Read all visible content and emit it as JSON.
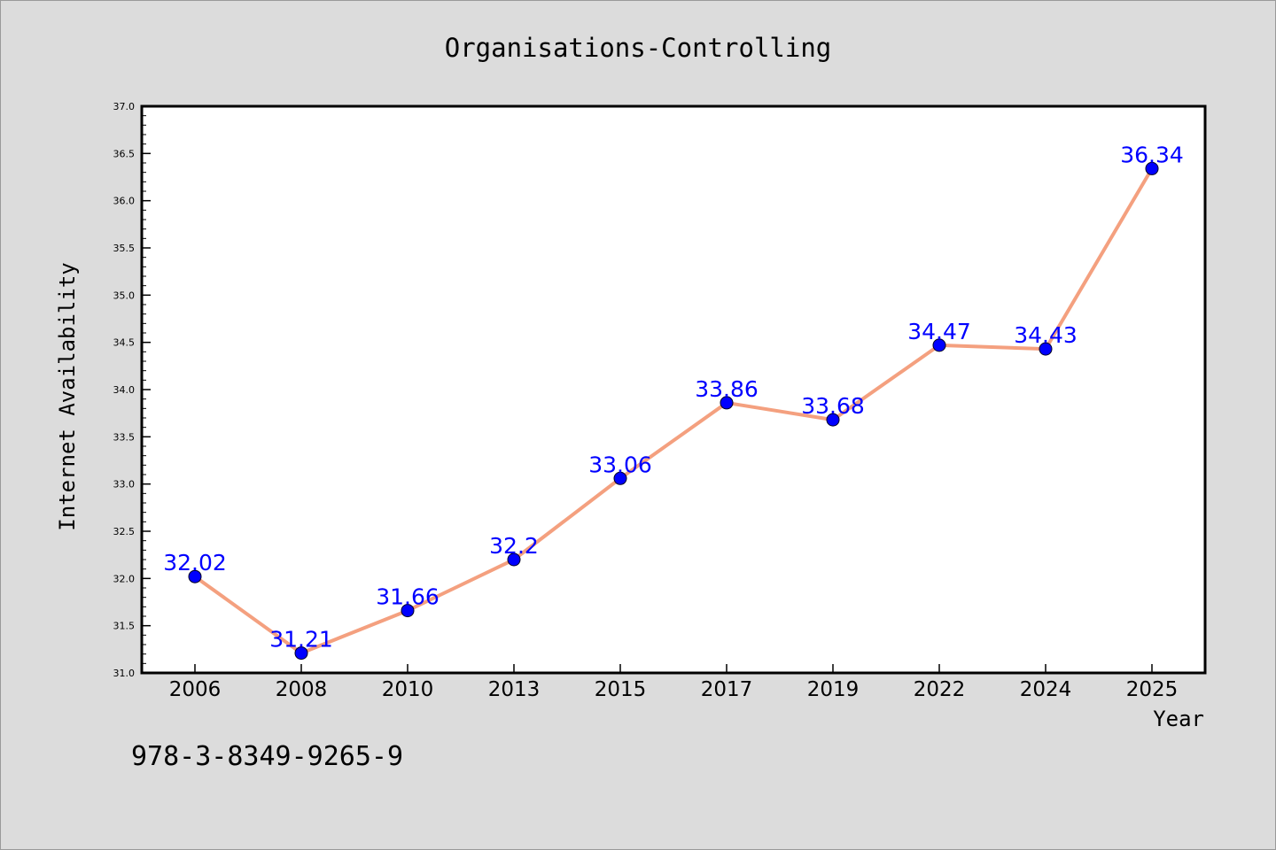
{
  "footer_text": "978-3-8349-9265-9",
  "colors": {
    "background": "#dcdcdc",
    "plot_bg": "#ffffff",
    "line": "#f4a07f",
    "marker": "#0000ff",
    "data_label": "#0000ff"
  },
  "chart_data": {
    "type": "line",
    "title": "Organisations-Controlling",
    "xlabel": "Year",
    "ylabel": "Internet Availability",
    "categories": [
      "2006",
      "2008",
      "2010",
      "2013",
      "2015",
      "2017",
      "2019",
      "2022",
      "2024",
      "2025"
    ],
    "values": [
      32.02,
      31.21,
      31.66,
      32.2,
      33.06,
      33.86,
      33.68,
      34.47,
      34.43,
      36.34
    ],
    "data_labels": [
      "32.02",
      "31.21",
      "31.66",
      "32.2",
      "33.06",
      "33.86",
      "33.68",
      "34.47",
      "34.43",
      "36.34"
    ],
    "ylim": [
      31.0,
      37.0
    ],
    "yticks": [
      "31.0",
      "31.5",
      "32.0",
      "32.5",
      "33.0",
      "33.5",
      "34.0",
      "34.5",
      "35.0",
      "35.5",
      "36.0",
      "36.5",
      "37.0"
    ],
    "grid": false,
    "legend": "none"
  }
}
